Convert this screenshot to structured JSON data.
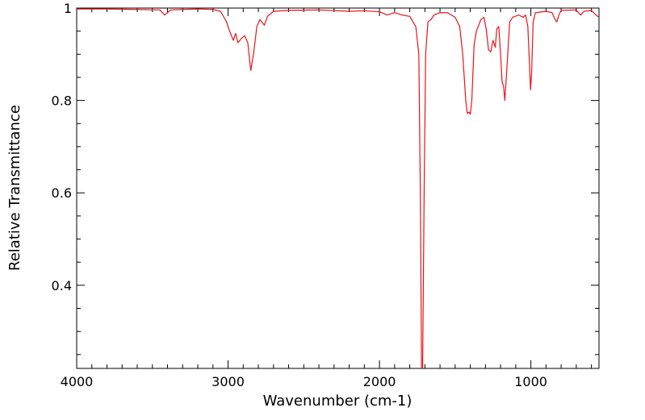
{
  "chart_data": {
    "type": "line",
    "title": "",
    "xlabel": "Wavenumber (cm-1)",
    "ylabel": "Relative Transmittance",
    "xlim": [
      4000,
      550
    ],
    "ylim": [
      0.22,
      1.0
    ],
    "x_reversed": true,
    "grid": false,
    "legend": "none",
    "x_ticks": [
      {
        "value": 4000,
        "label": "4000"
      },
      {
        "value": 3000,
        "label": "3000"
      },
      {
        "value": 2000,
        "label": "2000"
      },
      {
        "value": 1000,
        "label": "1000"
      }
    ],
    "y_ticks": [
      {
        "value": 0.4,
        "label": "0.4"
      },
      {
        "value": 0.6,
        "label": "0.6"
      },
      {
        "value": 0.8,
        "label": "0.8"
      },
      {
        "value": 1.0,
        "label": "1"
      }
    ],
    "series": [
      {
        "color": "#e8141a",
        "points": [
          [
            4000,
            0.998
          ],
          [
            3800,
            0.998
          ],
          [
            3600,
            0.997
          ],
          [
            3450,
            0.996
          ],
          [
            3420,
            0.985
          ],
          [
            3400,
            0.99
          ],
          [
            3380,
            0.996
          ],
          [
            3200,
            0.998
          ],
          [
            3100,
            0.997
          ],
          [
            3050,
            0.993
          ],
          [
            3010,
            0.97
          ],
          [
            2990,
            0.95
          ],
          [
            2965,
            0.93
          ],
          [
            2950,
            0.945
          ],
          [
            2935,
            0.925
          ],
          [
            2910,
            0.935
          ],
          [
            2890,
            0.94
          ],
          [
            2870,
            0.925
          ],
          [
            2850,
            0.865
          ],
          [
            2830,
            0.905
          ],
          [
            2810,
            0.96
          ],
          [
            2790,
            0.975
          ],
          [
            2760,
            0.963
          ],
          [
            2740,
            0.982
          ],
          [
            2700,
            0.993
          ],
          [
            2600,
            0.995
          ],
          [
            2400,
            0.996
          ],
          [
            2200,
            0.993
          ],
          [
            2100,
            0.994
          ],
          [
            2000,
            0.992
          ],
          [
            1950,
            0.985
          ],
          [
            1900,
            0.99
          ],
          [
            1850,
            0.985
          ],
          [
            1800,
            0.982
          ],
          [
            1760,
            0.96
          ],
          [
            1740,
            0.9
          ],
          [
            1730,
            0.6
          ],
          [
            1722,
            0.22
          ],
          [
            1715,
            0.22
          ],
          [
            1705,
            0.6
          ],
          [
            1695,
            0.9
          ],
          [
            1680,
            0.97
          ],
          [
            1660,
            0.975
          ],
          [
            1640,
            0.985
          ],
          [
            1600,
            0.99
          ],
          [
            1550,
            0.99
          ],
          [
            1500,
            0.98
          ],
          [
            1470,
            0.96
          ],
          [
            1450,
            0.9
          ],
          [
            1430,
            0.8
          ],
          [
            1420,
            0.772
          ],
          [
            1408,
            0.775
          ],
          [
            1400,
            0.77
          ],
          [
            1390,
            0.8
          ],
          [
            1375,
            0.92
          ],
          [
            1360,
            0.95
          ],
          [
            1330,
            0.975
          ],
          [
            1310,
            0.98
          ],
          [
            1295,
            0.955
          ],
          [
            1280,
            0.91
          ],
          [
            1265,
            0.905
          ],
          [
            1250,
            0.93
          ],
          [
            1235,
            0.915
          ],
          [
            1225,
            0.955
          ],
          [
            1212,
            0.96
          ],
          [
            1200,
            0.9
          ],
          [
            1190,
            0.84
          ],
          [
            1180,
            0.83
          ],
          [
            1172,
            0.8
          ],
          [
            1160,
            0.86
          ],
          [
            1140,
            0.97
          ],
          [
            1120,
            0.98
          ],
          [
            1080,
            0.985
          ],
          [
            1050,
            0.98
          ],
          [
            1035,
            0.985
          ],
          [
            1020,
            0.96
          ],
          [
            1008,
            0.87
          ],
          [
            1002,
            0.823
          ],
          [
            995,
            0.86
          ],
          [
            985,
            0.97
          ],
          [
            970,
            0.99
          ],
          [
            900,
            0.993
          ],
          [
            860,
            0.99
          ],
          [
            840,
            0.975
          ],
          [
            828,
            0.97
          ],
          [
            815,
            0.985
          ],
          [
            800,
            0.995
          ],
          [
            700,
            0.996
          ],
          [
            680,
            0.988
          ],
          [
            670,
            0.985
          ],
          [
            650,
            0.993
          ],
          [
            600,
            0.995
          ],
          [
            570,
            0.985
          ],
          [
            550,
            0.98
          ]
        ]
      }
    ]
  }
}
